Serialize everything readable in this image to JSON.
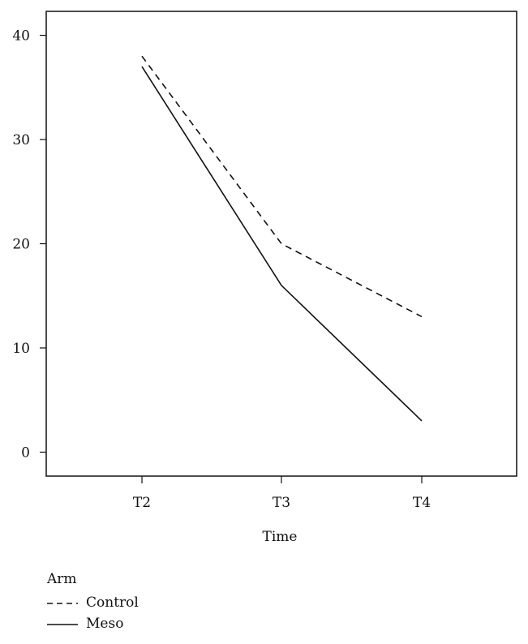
{
  "chart_data": {
    "type": "line",
    "title": "",
    "xlabel": "Time",
    "ylabel": "",
    "categories": [
      "T2",
      "T3",
      "T4"
    ],
    "yticks": [
      0,
      10,
      20,
      30,
      40
    ],
    "ylim": [
      -2.3,
      42.3
    ],
    "grid": false,
    "legend": {
      "title": "Arm",
      "placement": "bottom-left"
    },
    "series": [
      {
        "name": "Control",
        "style": "dashed",
        "color": "#111111",
        "values": [
          38,
          20,
          13
        ]
      },
      {
        "name": "Meso",
        "style": "solid",
        "color": "#111111",
        "values": [
          37,
          16,
          3
        ]
      }
    ]
  }
}
